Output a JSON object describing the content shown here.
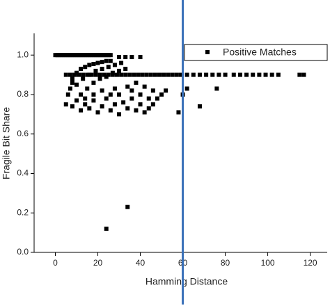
{
  "chart_data": {
    "type": "scatter",
    "xlabel": "Hamming Distance",
    "ylabel": "Fragile Bit Share",
    "xlim": [
      -10,
      128
    ],
    "ylim": [
      0,
      1.11
    ],
    "xticks": [
      0,
      20,
      40,
      60,
      80,
      100,
      120
    ],
    "yticks": [
      {
        "value": 0,
        "label": "0.0"
      },
      {
        "value": 0.2,
        "label": "0.2"
      },
      {
        "value": 0.4,
        "label": "0.4"
      },
      {
        "value": 0.6,
        "label": "0.6"
      },
      {
        "value": 0.8,
        "label": "0.8"
      },
      {
        "value": 1,
        "label": "1.0"
      }
    ],
    "vline": 60,
    "vline_color": "#3a70b8",
    "legend": "upper right",
    "series": [
      {
        "name": "Positive Matches",
        "color": "#000000",
        "x": [
          0,
          1,
          2,
          3,
          4,
          5,
          6,
          7,
          8,
          9,
          10,
          11,
          12,
          13,
          14,
          15,
          16,
          17,
          18,
          19,
          20,
          21,
          22,
          23,
          24,
          25,
          26,
          30,
          33,
          36,
          40,
          5,
          7,
          9,
          11,
          13,
          15,
          17,
          19,
          21,
          23,
          25,
          27,
          29,
          31,
          33,
          35,
          37,
          39,
          41,
          43,
          45,
          47,
          49,
          51,
          53,
          55,
          57,
          59,
          62,
          65,
          68,
          71,
          74,
          77,
          80,
          84,
          87,
          90,
          93,
          96,
          99,
          102,
          105,
          115,
          117,
          8,
          10,
          12,
          14,
          16,
          18,
          20,
          22,
          24,
          26,
          10,
          13,
          16,
          19,
          22,
          25,
          28,
          31,
          12,
          15,
          18,
          21,
          24,
          27,
          30,
          33,
          6,
          7,
          8,
          5,
          8,
          10,
          12,
          14,
          16,
          18,
          20,
          22,
          24,
          26,
          28,
          30,
          32,
          34,
          36,
          38,
          40,
          42,
          44,
          46,
          48,
          50,
          52,
          58,
          68,
          62,
          60,
          76,
          44,
          40,
          36,
          34,
          30,
          28,
          26,
          22,
          18,
          14,
          38,
          42,
          46,
          24,
          34
        ],
        "values": [
          1,
          1,
          1,
          1,
          1,
          1,
          1,
          1,
          1,
          1,
          1,
          1,
          1,
          1,
          1,
          1,
          1,
          1,
          1,
          1,
          1,
          1,
          1,
          1,
          1,
          1,
          1,
          0.99,
          0.99,
          0.99,
          0.99,
          0.9,
          0.9,
          0.9,
          0.9,
          0.9,
          0.9,
          0.9,
          0.9,
          0.9,
          0.9,
          0.9,
          0.9,
          0.9,
          0.9,
          0.9,
          0.9,
          0.9,
          0.9,
          0.9,
          0.9,
          0.9,
          0.9,
          0.9,
          0.9,
          0.9,
          0.9,
          0.9,
          0.9,
          0.9,
          0.9,
          0.9,
          0.9,
          0.9,
          0.9,
          0.9,
          0.9,
          0.9,
          0.9,
          0.9,
          0.9,
          0.9,
          0.9,
          0.9,
          0.9,
          0.9,
          0.88,
          0.91,
          0.93,
          0.94,
          0.95,
          0.955,
          0.96,
          0.965,
          0.97,
          0.97,
          0.85,
          0.88,
          0.9,
          0.92,
          0.93,
          0.94,
          0.95,
          0.96,
          0.8,
          0.83,
          0.86,
          0.88,
          0.89,
          0.91,
          0.92,
          0.93,
          0.8,
          0.83,
          0.86,
          0.75,
          0.74,
          0.77,
          0.72,
          0.75,
          0.73,
          0.77,
          0.71,
          0.74,
          0.78,
          0.72,
          0.75,
          0.7,
          0.76,
          0.73,
          0.78,
          0.72,
          0.75,
          0.71,
          0.73,
          0.75,
          0.78,
          0.8,
          0.82,
          0.71,
          0.74,
          0.83,
          0.8,
          0.83,
          0.78,
          0.8,
          0.82,
          0.84,
          0.8,
          0.83,
          0.8,
          0.82,
          0.8,
          0.78,
          0.86,
          0.84,
          0.82,
          0.12,
          0.23
        ]
      }
    ]
  }
}
